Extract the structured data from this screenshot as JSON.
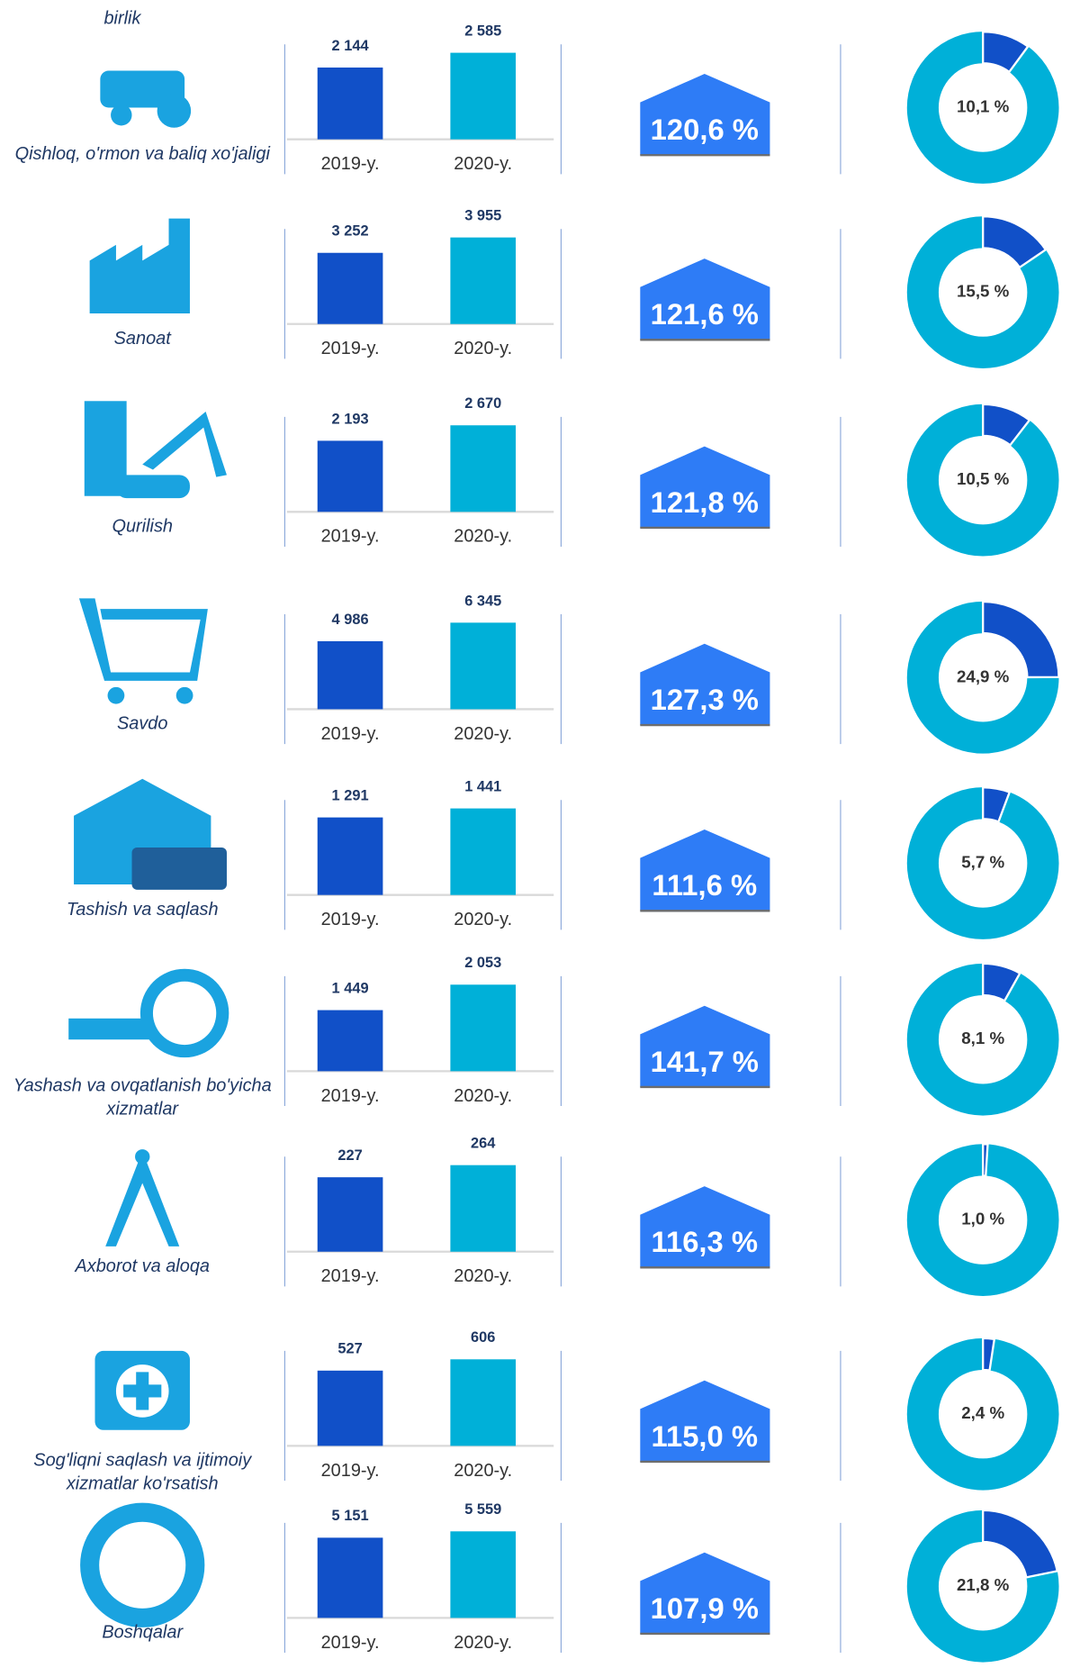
{
  "unit": "birlik",
  "chart_data": [
    {
      "type": "bar",
      "title": "Qishloq, o'rmon va baliq xo'jaligi",
      "categories": [
        "2019-y.",
        "2020-y."
      ],
      "values": [
        2144,
        2585
      ],
      "value_labels": [
        "2 144",
        "2 585"
      ],
      "colors": [
        "#1150c8",
        "#00b0d8"
      ],
      "growth": {
        "value": 120.6,
        "label": "120,6 %"
      },
      "share": {
        "type": "pie",
        "values": [
          10.1
        ],
        "value_labels": [
          "10,1 %"
        ],
        "colors": [
          "#1150c8",
          "#00b0d8"
        ]
      }
    },
    {
      "type": "bar",
      "title": "Sanoat",
      "categories": [
        "2019-y.",
        "2020-y."
      ],
      "values": [
        3252,
        3955
      ],
      "value_labels": [
        "3 252",
        "3 955"
      ],
      "colors": [
        "#1150c8",
        "#00b0d8"
      ],
      "growth": {
        "value": 121.6,
        "label": "121,6 %"
      },
      "share": {
        "type": "pie",
        "values": [
          15.5
        ],
        "value_labels": [
          "15,5 %"
        ],
        "colors": [
          "#1150c8",
          "#00b0d8"
        ]
      }
    },
    {
      "type": "bar",
      "title": "Qurilish",
      "categories": [
        "2019-y.",
        "2020-y."
      ],
      "values": [
        2193,
        2670
      ],
      "value_labels": [
        "2 193",
        "2 670"
      ],
      "colors": [
        "#1150c8",
        "#00b0d8"
      ],
      "growth": {
        "value": 121.8,
        "label": "121,8 %"
      },
      "share": {
        "type": "pie",
        "values": [
          10.5
        ],
        "value_labels": [
          "10,5 %"
        ],
        "colors": [
          "#1150c8",
          "#00b0d8"
        ]
      }
    },
    {
      "type": "bar",
      "title": "Savdo",
      "categories": [
        "2019-y.",
        "2020-y."
      ],
      "values": [
        4986,
        6345
      ],
      "value_labels": [
        "4 986",
        "6 345"
      ],
      "colors": [
        "#1150c8",
        "#00b0d8"
      ],
      "growth": {
        "value": 127.3,
        "label": "127,3 %"
      },
      "share": {
        "type": "pie",
        "values": [
          24.9
        ],
        "value_labels": [
          "24,9 %"
        ],
        "colors": [
          "#1150c8",
          "#00b0d8"
        ]
      }
    },
    {
      "type": "bar",
      "title": "Tashish va saqlash",
      "categories": [
        "2019-y.",
        "2020-y."
      ],
      "values": [
        1291,
        1441
      ],
      "value_labels": [
        "1 291",
        "1 441"
      ],
      "colors": [
        "#1150c8",
        "#00b0d8"
      ],
      "growth": {
        "value": 111.6,
        "label": "111,6 %"
      },
      "share": {
        "type": "pie",
        "values": [
          5.7
        ],
        "value_labels": [
          "5,7 %"
        ],
        "colors": [
          "#1150c8",
          "#00b0d8"
        ]
      }
    },
    {
      "type": "bar",
      "title": "Yashash va ovqatlanish bo'yicha xizmatlar",
      "categories": [
        "2019-y.",
        "2020-y."
      ],
      "values": [
        1449,
        2053
      ],
      "value_labels": [
        "1 449",
        "2 053"
      ],
      "colors": [
        "#1150c8",
        "#00b0d8"
      ],
      "growth": {
        "value": 141.7,
        "label": "141,7 %"
      },
      "share": {
        "type": "pie",
        "values": [
          8.1
        ],
        "value_labels": [
          "8,1 %"
        ],
        "colors": [
          "#1150c8",
          "#00b0d8"
        ]
      }
    },
    {
      "type": "bar",
      "title": "Axborot va aloqa",
      "categories": [
        "2019-y.",
        "2020-y."
      ],
      "values": [
        227,
        264
      ],
      "colors": [
        "#1150c8",
        "#00b0d8"
      ],
      "growth": {
        "value": 116.3,
        "label": "116,3 %"
      },
      "share": {
        "type": "pie",
        "values": [
          1.0
        ],
        "value_labels": [
          "1,0 %"
        ],
        "colors": [
          "#1150c8",
          "#00b0d8"
        ]
      }
    },
    {
      "type": "bar",
      "title": "Sog'liqni saqlash va ijtimoiy xizmatlar ko'rsatish",
      "categories": [
        "2019-y.",
        "2020-y."
      ],
      "values": [
        527,
        606
      ],
      "colors": [
        "#1150c8",
        "#00b0d8"
      ],
      "growth": {
        "value": 115.0,
        "label": "115,0 %"
      },
      "share": {
        "type": "pie",
        "values": [
          2.4
        ],
        "value_labels": [
          "2,4 %"
        ],
        "colors": [
          "#1150c8",
          "#00b0d8"
        ]
      }
    },
    {
      "type": "bar",
      "title": "Boshqalar",
      "categories": [
        "2019-y.",
        "2020-y."
      ],
      "values": [
        5151,
        5559
      ],
      "value_labels": [
        "5 151",
        "5 559"
      ],
      "colors": [
        "#1150c8",
        "#00b0d8"
      ],
      "growth": {
        "value": 107.9,
        "label": "107,9 %"
      },
      "share": {
        "type": "pie",
        "values": [
          21.8
        ],
        "value_labels": [
          "21,8 %"
        ],
        "colors": [
          "#1150c8",
          "#00b0d8"
        ]
      }
    }
  ]
}
